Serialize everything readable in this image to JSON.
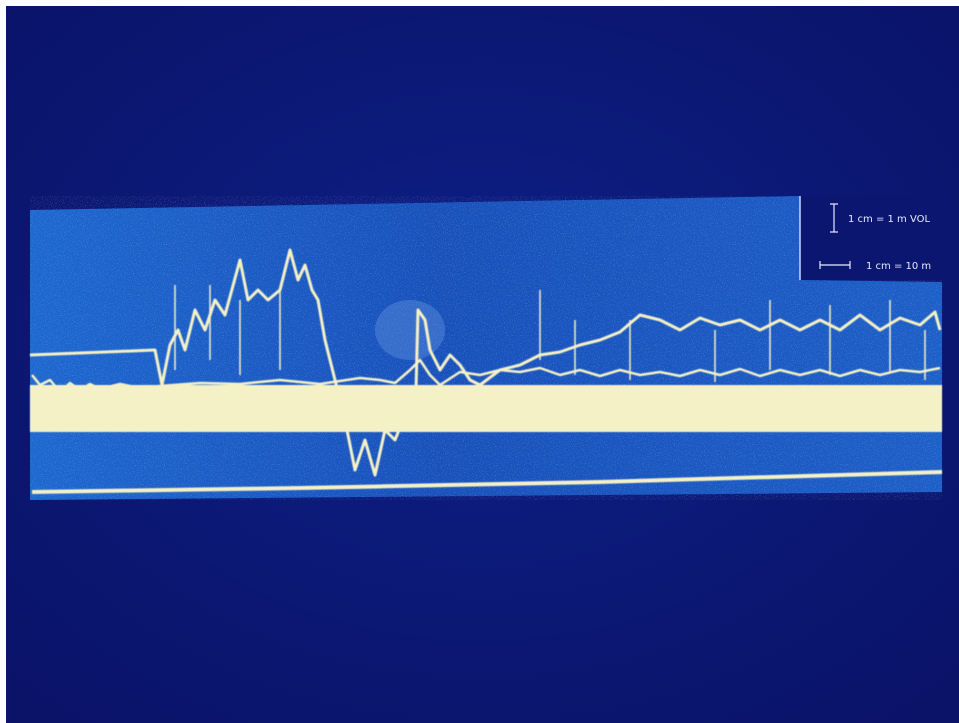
{
  "scale_legend": {
    "vertical": "1 cm = 1 m VOL",
    "horizontal": "1 cm = 10 m"
  }
}
